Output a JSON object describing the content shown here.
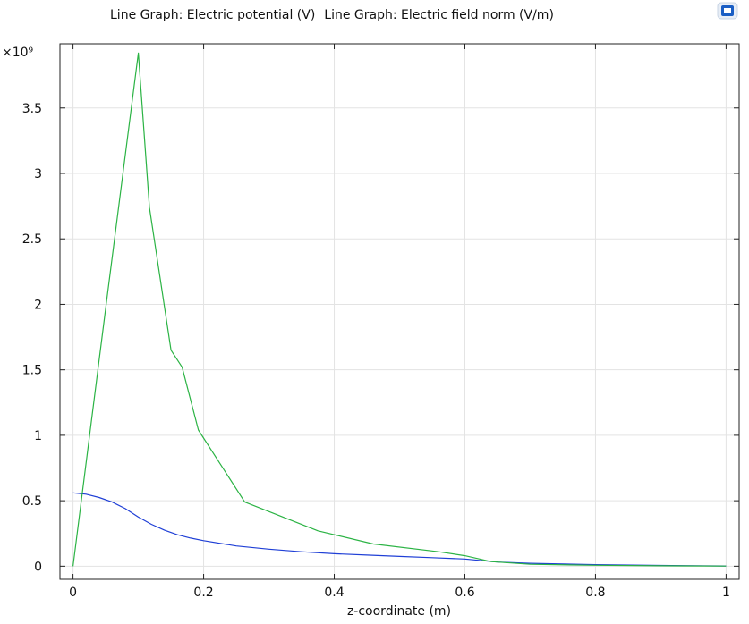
{
  "header": {
    "graph1_title": "Line Graph: Electric potential (V)",
    "graph2_title": "Line Graph: Electric field norm (V/m)"
  },
  "colors": {
    "potential": "#1f3fd6",
    "field": "#2bb344",
    "grid": "#e3e3e3",
    "axis": "#222222"
  },
  "chart_data": {
    "type": "line",
    "xlabel": "z-coordinate (m)",
    "ylabel": "",
    "y_exponent_label": "×10⁹",
    "xlim": [
      -0.02,
      1.02
    ],
    "ylim": [
      -0.1,
      3.99
    ],
    "x_ticks": [
      0,
      0.2,
      0.4,
      0.6,
      0.8,
      1
    ],
    "x_tick_labels": [
      "0",
      "0.2",
      "0.4",
      "0.6",
      "0.8",
      "1"
    ],
    "y_ticks": [
      0,
      0.5,
      1,
      1.5,
      2,
      2.5,
      3,
      3.5
    ],
    "y_tick_labels": [
      "0",
      "0.5",
      "1",
      "1.5",
      "2",
      "2.5",
      "3",
      "3.5"
    ],
    "grid": true,
    "series": [
      {
        "color": "#1f3fd6",
        "x": [
          0,
          0.02,
          0.04,
          0.06,
          0.08,
          0.1,
          0.12,
          0.14,
          0.16,
          0.18,
          0.2,
          0.25,
          0.3,
          0.35,
          0.4,
          0.45,
          0.5,
          0.55,
          0.6,
          0.65,
          0.7,
          0.8,
          0.9,
          1.0
        ],
        "values": [
          0.56,
          0.55,
          0.525,
          0.49,
          0.44,
          0.375,
          0.32,
          0.275,
          0.24,
          0.215,
          0.195,
          0.155,
          0.13,
          0.11,
          0.095,
          0.085,
          0.075,
          0.065,
          0.055,
          0.032,
          0.022,
          0.012,
          0.006,
          0.002
        ]
      },
      {
        "color": "#2bb344",
        "x": [
          0,
          0.05,
          0.1,
          0.117,
          0.15,
          0.167,
          0.192,
          0.263,
          0.375,
          0.46,
          0.56,
          0.6,
          0.64,
          0.7,
          0.8,
          0.9,
          1.0
        ],
        "values": [
          0,
          1.97,
          3.92,
          2.74,
          1.65,
          1.52,
          1.04,
          0.49,
          0.27,
          0.17,
          0.11,
          0.08,
          0.035,
          0.015,
          0.007,
          0.003,
          0.001
        ]
      }
    ]
  }
}
